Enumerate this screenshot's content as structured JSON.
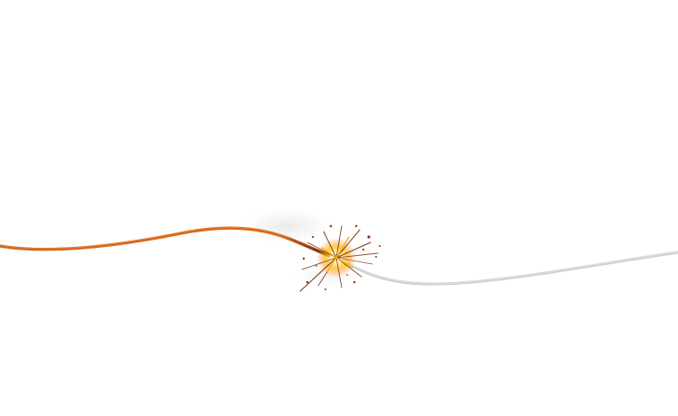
{
  "scene": {
    "subject": "burning-fuse",
    "background_color": "#ffffff",
    "burnt_fuse_color": "#d2691e",
    "burnt_fuse_highlight": "#f08a3c",
    "unburnt_fuse_color": "#d8dddd",
    "spark_core_color": "#fff3a0",
    "spark_glow_color": "#ffb000",
    "spark_particle_color": "#8a3a1a",
    "smoke_color": "#cfcfcf"
  }
}
